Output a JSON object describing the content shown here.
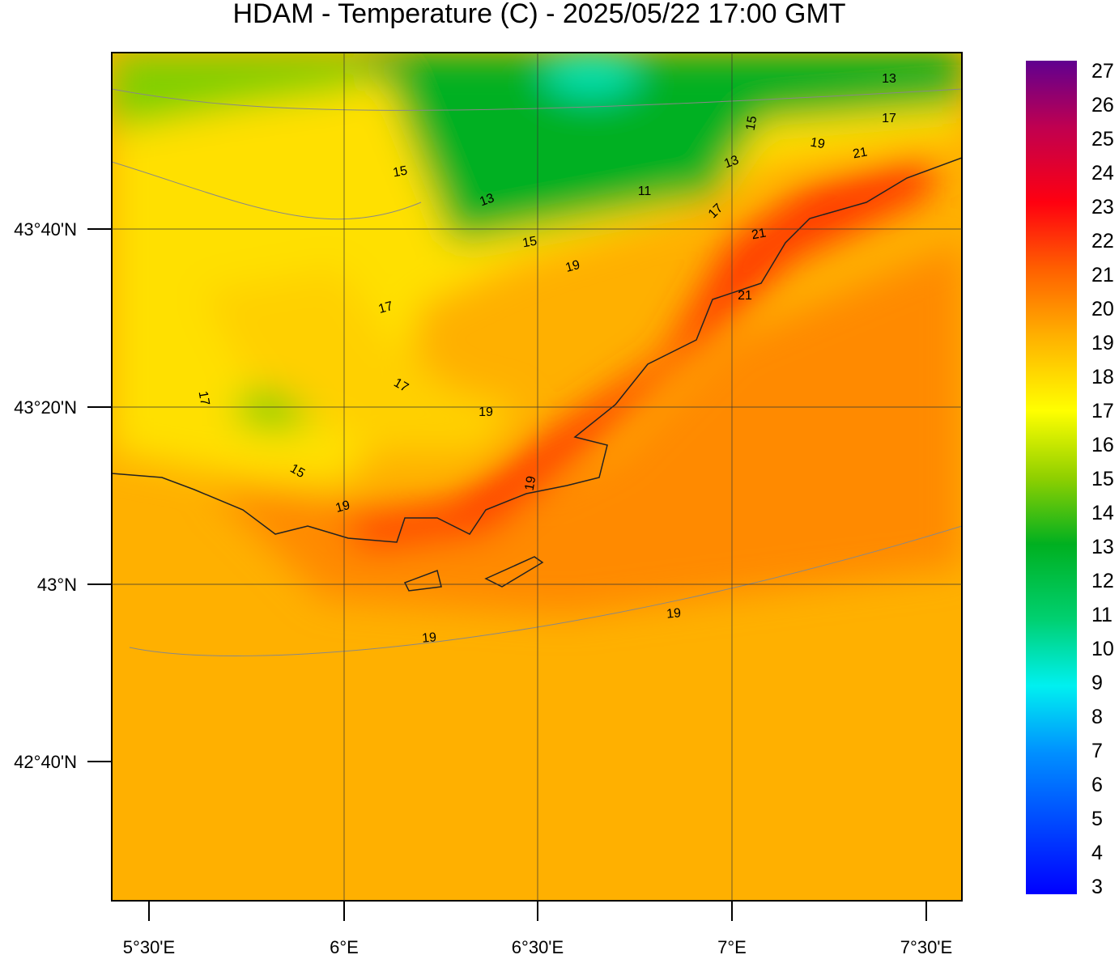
{
  "header": {
    "title": "HDAM - Temperature (C)  -  2025/05/22  17:00 GMT"
  },
  "map": {
    "lon_ticks": [
      "5°30'E",
      "6°E",
      "6°30'E",
      "7°E",
      "7°30'E"
    ],
    "lat_ticks": [
      "43°40'N",
      "43°20'N",
      "43°N",
      "42°40'N"
    ],
    "contour_labels": [
      "13",
      "17",
      "15",
      "19",
      "21",
      "13",
      "15",
      "13",
      "11",
      "17",
      "15",
      "21",
      "19",
      "21",
      "17",
      "17",
      "17",
      "19",
      "15",
      "19",
      "19",
      "19",
      "19"
    ]
  },
  "colorbar": {
    "labels": [
      "27",
      "26",
      "25",
      "24",
      "23",
      "22",
      "21",
      "20",
      "19",
      "18",
      "17",
      "16",
      "15",
      "14",
      "13",
      "12",
      "11",
      "10",
      "9",
      "8",
      "7",
      "6",
      "5",
      "4",
      "3"
    ]
  }
}
